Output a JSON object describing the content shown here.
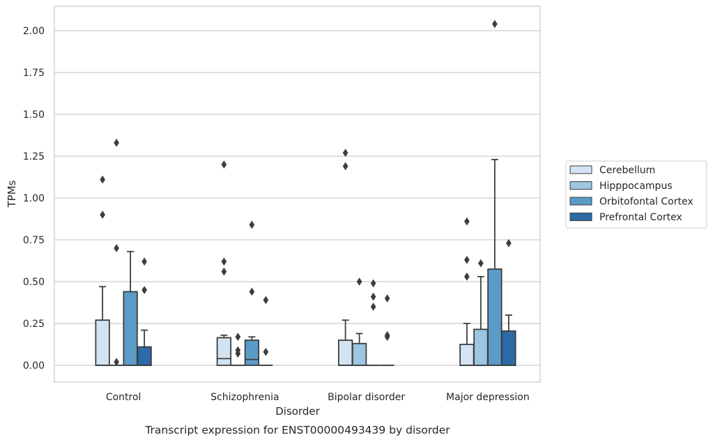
{
  "chart_data": {
    "type": "box",
    "title": "",
    "caption": "Transcript expression for ENST00000493439 by disorder",
    "xlabel": "Disorder",
    "ylabel": "TPMs",
    "ylim": [
      -0.1,
      2.15
    ],
    "yticks": [
      "0.00",
      "0.25",
      "0.50",
      "0.75",
      "1.00",
      "1.25",
      "1.50",
      "1.75",
      "2.00"
    ],
    "grid": "horizontal",
    "legend_position": "right",
    "categories": [
      "Control",
      "Schizophrenia",
      "Bipolar disorder",
      "Major depression"
    ],
    "series": [
      {
        "name": "Cerebellum",
        "color": "#d2e3f3",
        "boxes": [
          {
            "q1": 0,
            "median": 0,
            "q3": 0.27,
            "whisker_low": 0,
            "whisker_high": 0.47,
            "outliers": [
              0.9,
              1.11
            ]
          },
          {
            "q1": 0,
            "median": 0.04,
            "q3": 0.165,
            "whisker_low": 0,
            "whisker_high": 0.18,
            "outliers": [
              0.56,
              0.62,
              1.2
            ]
          },
          {
            "q1": 0,
            "median": 0,
            "q3": 0.15,
            "whisker_low": 0,
            "whisker_high": 0.27,
            "outliers": [
              1.19,
              1.27
            ]
          },
          {
            "q1": 0,
            "median": 0,
            "q3": 0.125,
            "whisker_low": 0,
            "whisker_high": 0.25,
            "outliers": [
              0.53,
              0.63,
              0.86
            ]
          }
        ]
      },
      {
        "name": "Hipppocampus",
        "color": "#9dc6e0",
        "boxes": [
          {
            "q1": 0,
            "median": 0,
            "q3": 0,
            "whisker_low": 0,
            "whisker_high": 0,
            "outliers": [
              0.02,
              0.7,
              1.33
            ]
          },
          {
            "q1": 0,
            "median": 0,
            "q3": 0,
            "whisker_low": 0,
            "whisker_high": 0,
            "outliers": [
              0.07,
              0.09,
              0.17
            ]
          },
          {
            "q1": 0,
            "median": 0,
            "q3": 0.13,
            "whisker_low": 0,
            "whisker_high": 0.19,
            "outliers": [
              0.5
            ]
          },
          {
            "q1": 0,
            "median": 0,
            "q3": 0.215,
            "whisker_low": 0,
            "whisker_high": 0.53,
            "outliers": [
              0.61
            ]
          }
        ]
      },
      {
        "name": "Orbitofontal Cortex",
        "color": "#5b9bc8",
        "boxes": [
          {
            "q1": 0,
            "median": 0,
            "q3": 0.44,
            "whisker_low": 0,
            "whisker_high": 0.68,
            "outliers": []
          },
          {
            "q1": 0,
            "median": 0.035,
            "q3": 0.15,
            "whisker_low": 0,
            "whisker_high": 0.17,
            "outliers": [
              0.44,
              0.84
            ]
          },
          {
            "q1": 0,
            "median": 0,
            "q3": 0,
            "whisker_low": 0,
            "whisker_high": 0,
            "outliers": [
              0.35,
              0.41,
              0.49
            ]
          },
          {
            "q1": 0,
            "median": 0,
            "q3": 0.575,
            "whisker_low": 0,
            "whisker_high": 1.23,
            "outliers": [
              2.04
            ]
          }
        ]
      },
      {
        "name": "Prefrontal Cortex",
        "color": "#2c6aa8",
        "boxes": [
          {
            "q1": 0,
            "median": 0,
            "q3": 0.11,
            "whisker_low": 0,
            "whisker_high": 0.21,
            "outliers": [
              0.45,
              0.62
            ]
          },
          {
            "q1": 0,
            "median": 0,
            "q3": 0,
            "whisker_low": 0,
            "whisker_high": 0,
            "outliers": [
              0.08,
              0.39
            ]
          },
          {
            "q1": 0,
            "median": 0,
            "q3": 0,
            "whisker_low": 0,
            "whisker_high": 0,
            "outliers": [
              0.17,
              0.18,
              0.4
            ]
          },
          {
            "q1": 0,
            "median": 0,
            "q3": 0.205,
            "whisker_low": 0,
            "whisker_high": 0.3,
            "outliers": [
              0.73
            ]
          }
        ]
      }
    ]
  }
}
